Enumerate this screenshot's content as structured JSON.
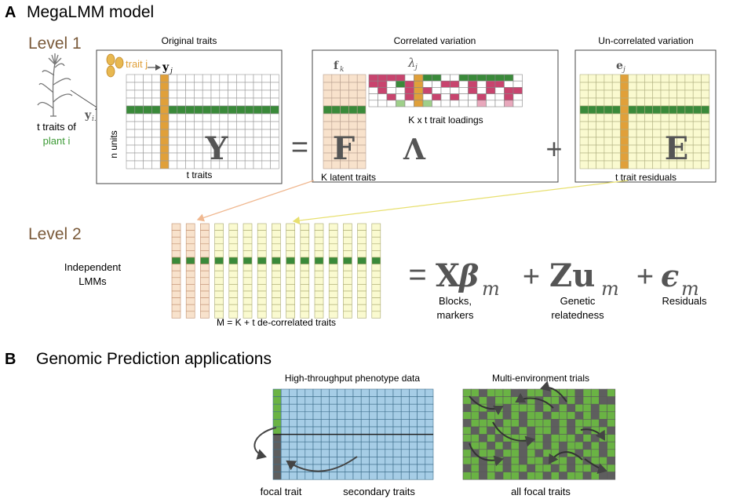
{
  "panelA": {
    "letter": "A",
    "title": "MegaLMM model",
    "level1": "Level 1",
    "level2": "Level 2",
    "plant_caption_line1": "t traits of",
    "plant_caption_line2": "plant i",
    "original_traits_title": "Original traits",
    "correlated_title": "Correlated variation",
    "uncorrelated_title": "Un-correlated variation",
    "trait_j_label": "trait j",
    "yj_symbol": "y",
    "yj_sub": "j",
    "yi_symbol": "y",
    "yi_sub": "i.",
    "n_units": "n units",
    "Y_letter": "Y",
    "t_traits": "t traits",
    "equals": "=",
    "fk_symbol": "f",
    "fk_sub": "k",
    "F_letter": "F",
    "lambda_symbol": "λ",
    "lambda_sub": "j",
    "loadings_label": "K x t trait loadings",
    "Lambda_letter": "Λ",
    "K_latent": "K latent traits",
    "plus": "+",
    "ej_symbol": "e",
    "ej_sub": "j",
    "E_letter": "E",
    "t_trait_residuals": "t trait residuals",
    "independent_line1": "Independent",
    "independent_line2": "LMMs",
    "M_label": "M = K + t de-correlated traits",
    "eq_equals": "=",
    "eq_X": "X",
    "eq_beta": "β",
    "eq_beta_sub": "m",
    "eq_plus1": "+",
    "eq_Z": "Zu",
    "eq_Z_sub": "m",
    "eq_plus2": "+",
    "eq_eps": "ϵ",
    "eq_eps_sub": "m",
    "blocks_line1": "Blocks,",
    "blocks_line2": "markers",
    "genetic_line1": "Genetic",
    "genetic_line2": "relatedness",
    "residuals": "Residuals"
  },
  "panelB": {
    "letter": "B",
    "title": "Genomic Prediction applications",
    "htp_title": "High-throughput phenotype data",
    "met_title": "Multi-environment trials",
    "focal_trait": "focal trait",
    "secondary_traits": "secondary traits",
    "all_focal": "all focal traits"
  },
  "colors": {
    "brown": "#7a5a3a",
    "green_text": "#3c9a35",
    "green_row": "#3a8a3a",
    "orange": "#e0a03a",
    "F_fill": "#f8e2cc",
    "E_fill": "#fafad0",
    "blue_cell": "#a6cde6",
    "met_green": "#6ab344",
    "met_gray": "#5e5e5e",
    "loading_magenta": "#c8446e",
    "loading_lightpink": "#e8a8bc",
    "loading_lightgreen": "#9fcf8a"
  },
  "icons": {
    "plant": "plant-icon",
    "seeds": "seeds-icon"
  }
}
